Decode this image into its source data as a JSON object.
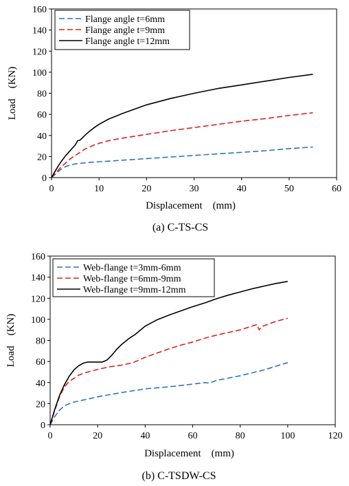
{
  "chart_data": [
    {
      "type": "line",
      "caption": "(a) C-TS-CS",
      "xlabel": "Displacement　(mm)",
      "ylabel": "Load　(KN)",
      "xlim": [
        0,
        60
      ],
      "ylim": [
        0,
        160
      ],
      "xticks": [
        0,
        10,
        20,
        30,
        40,
        50,
        60
      ],
      "yticks": [
        0,
        20,
        40,
        60,
        80,
        100,
        120,
        140,
        160
      ],
      "grid": false,
      "legend": "top-left",
      "series": [
        {
          "name": "Flange angle t=6mm",
          "color": "#2e75b6",
          "dash": "dashed",
          "x": [
            0,
            1,
            2,
            3,
            4,
            5,
            6,
            8,
            10,
            15,
            20,
            25,
            30,
            35,
            40,
            45,
            50,
            55
          ],
          "y": [
            0,
            4,
            8,
            10.5,
            12,
            13,
            13.5,
            14.5,
            15,
            16.5,
            18,
            19.5,
            21,
            22.5,
            24,
            25.5,
            27.5,
            29
          ]
        },
        {
          "name": "Flange angle t=9mm",
          "color": "#e02020",
          "dash": "dashed",
          "x": [
            0,
            1,
            2,
            3,
            4,
            5,
            6,
            7,
            8,
            9,
            10,
            12,
            15,
            20,
            25,
            30,
            35,
            40,
            45,
            50,
            55
          ],
          "y": [
            0,
            5,
            10,
            14,
            18,
            21,
            24,
            27,
            29,
            31,
            32.5,
            35,
            37.5,
            41,
            44.5,
            47.5,
            50.5,
            53.5,
            56,
            59,
            61.5
          ]
        },
        {
          "name": "Flange angle t=12mm",
          "color": "#000000",
          "dash": "solid",
          "x": [
            0,
            1,
            2,
            3,
            4,
            5,
            5.5,
            6,
            7,
            8,
            9,
            10,
            12,
            15,
            20,
            25,
            30,
            35,
            40,
            45,
            50,
            55
          ],
          "y": [
            0,
            8,
            15,
            21,
            26,
            31,
            35,
            35.5,
            40,
            44,
            47.5,
            50.5,
            55.5,
            61,
            69,
            75,
            80,
            84.5,
            88,
            91.5,
            95,
            98
          ]
        }
      ]
    },
    {
      "type": "line",
      "caption": "(b) C-TSDW-CS",
      "xlabel": "Displacement　(mm)",
      "ylabel": "Load　(KN)",
      "xlim": [
        0,
        120
      ],
      "ylim": [
        0,
        160
      ],
      "xticks": [
        0,
        20,
        40,
        60,
        80,
        100,
        120
      ],
      "yticks": [
        0,
        20,
        40,
        60,
        80,
        100,
        120,
        140,
        160
      ],
      "grid": false,
      "legend": "top-left",
      "series": [
        {
          "name": "Web-flange t=3mm-6mm",
          "color": "#2e75b6",
          "dash": "dashed",
          "x": [
            0,
            2,
            4,
            6,
            8,
            10,
            15,
            20,
            30,
            40,
            50,
            60,
            65,
            67,
            70,
            80,
            90,
            100
          ],
          "y": [
            0,
            8,
            14,
            18,
            20,
            21.5,
            24,
            26.5,
            30.5,
            34,
            36,
            38.5,
            40,
            39.5,
            42,
            46.5,
            52,
            59
          ]
        },
        {
          "name": "Web-flange t=6mm-9mm",
          "color": "#e02020",
          "dash": "dashed",
          "x": [
            0,
            2,
            4,
            6,
            8,
            10,
            12,
            15,
            20,
            25,
            30,
            35,
            40,
            45,
            50,
            55,
            60,
            65,
            70,
            80,
            87,
            88,
            89,
            90,
            95,
            100
          ],
          "y": [
            0,
            14,
            27,
            36,
            41,
            44,
            47,
            49.5,
            52.5,
            55,
            56.5,
            59,
            64,
            68,
            72,
            75.5,
            78.5,
            82,
            85,
            90,
            95,
            90,
            93,
            94,
            98,
            101
          ]
        },
        {
          "name": "Web-flange t=9mm-12mm",
          "color": "#000000",
          "dash": "solid",
          "x": [
            0,
            2,
            4,
            6,
            8,
            10,
            12,
            14,
            16,
            18,
            20,
            22,
            24,
            26,
            28,
            30,
            33,
            36,
            40,
            45,
            50,
            55,
            60,
            65,
            70,
            75,
            80,
            85,
            90,
            95,
            100
          ],
          "y": [
            0,
            15,
            28,
            38,
            46,
            52,
            56,
            58.5,
            59.5,
            59.5,
            59.5,
            59.5,
            61.5,
            66,
            71.5,
            76,
            81.5,
            86,
            93.5,
            99.5,
            104,
            108,
            112,
            115.5,
            119.5,
            123,
            126,
            129,
            131.5,
            134,
            136
          ]
        }
      ]
    }
  ]
}
